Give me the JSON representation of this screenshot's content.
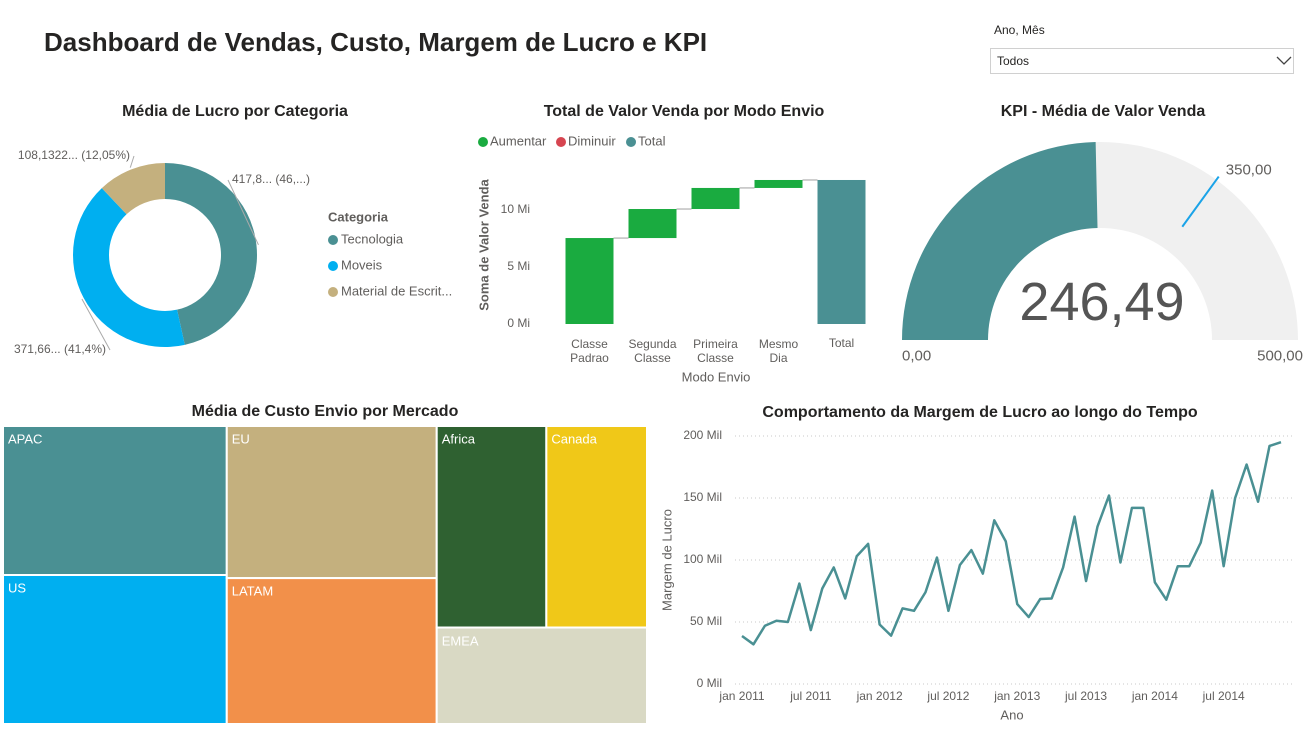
{
  "title": "Dashboard de Vendas, Custo, Margem de Lucro e KPI",
  "slicer": {
    "label": "Ano, Mês",
    "value": "Todos"
  },
  "chart_data": [
    {
      "type": "donut",
      "title": "Média de Lucro por Categoria",
      "legend_title": "Categoria",
      "categories": [
        "Tecnologia",
        "Moveis",
        "Material de Escrit..."
      ],
      "values": [
        417.8,
        371.66,
        108.1322
      ],
      "value_labels": [
        "417,8... (46,...)",
        "371,66... (41,4%)",
        "108,1322... (12,05%)"
      ],
      "colors": [
        "#4a9093",
        "#00aff0",
        "#c4b07e"
      ]
    },
    {
      "type": "waterfall",
      "title": "Total de Valor Venda por Modo Envio",
      "categories": [
        "Classe Padrao",
        "Segunda Classe",
        "Primeira Classe",
        "Mesmo Dia"
      ],
      "values": [
        7.55,
        2.55,
        1.85,
        0.7
      ],
      "total_label": "Total",
      "legend": [
        {
          "name": "Aumentar",
          "color": "#1aab40"
        },
        {
          "name": "Diminuir",
          "color": "#d64550"
        },
        {
          "name": "Total",
          "color": "#4a9093"
        }
      ],
      "ylabel": "Soma de Valor Venda",
      "xlabel": "Modo Envio",
      "ylim": [
        0,
        13
      ],
      "yticks": [
        {
          "value": 0,
          "label": "0 Mi"
        },
        {
          "value": 5,
          "label": "5 Mi"
        },
        {
          "value": 10,
          "label": "10 Mi"
        }
      ]
    },
    {
      "type": "gauge",
      "title": "KPI - Média de Valor Venda",
      "value": 246.49,
      "value_label": "246,49",
      "min": {
        "value": 0,
        "label": "0,00"
      },
      "max": {
        "value": 500,
        "label": "500,00"
      },
      "target": {
        "value": 350,
        "label": "350,00"
      },
      "color": "#4a9093",
      "track_color": "#f0f0f0",
      "target_color": "#1aa3e8"
    },
    {
      "type": "treemap",
      "title": "Média de Custo Envio por Mercado",
      "categories": [
        "APAC",
        "US",
        "EU",
        "LATAM",
        "Africa",
        "Canada",
        "EMEA"
      ],
      "values": [
        33.2,
        33.2,
        31.8,
        30.5,
        22.0,
        20.2,
        20.2
      ],
      "colors": [
        "#4a9093",
        "#00aff0",
        "#c4b07e",
        "#f2904a",
        "#2f6131",
        "#f0c818",
        "#d9d9c4"
      ]
    },
    {
      "type": "line",
      "title": "Comportamento da Margem de Lucro ao longo do Tempo",
      "categories": [
        "jan 2011",
        null,
        null,
        null,
        null,
        null,
        "jul 2011",
        null,
        null,
        null,
        null,
        null,
        "jan 2012",
        null,
        null,
        null,
        null,
        null,
        "jul 2012",
        null,
        null,
        null,
        null,
        null,
        "jan 2013",
        null,
        null,
        null,
        null,
        null,
        "jul 2013",
        null,
        null,
        null,
        null,
        null,
        "jan 2014",
        null,
        null,
        null,
        null,
        null,
        "jul 2014",
        null,
        null,
        null,
        null,
        null
      ],
      "values": [
        38.7,
        32,
        47,
        51,
        50,
        81,
        43.5,
        77,
        94,
        69,
        103,
        113,
        48,
        39,
        61,
        59,
        74,
        102,
        59,
        96,
        108,
        89,
        132,
        115,
        64.5,
        54,
        68.5,
        69,
        94,
        135,
        83,
        127,
        152,
        98,
        142,
        142,
        82,
        68,
        95,
        95,
        114,
        156,
        95,
        150,
        177,
        147,
        192,
        195
      ],
      "color": "#4a9093",
      "ylabel": "Margem de Lucro",
      "xlabel": "Ano",
      "ylim": [
        0,
        200
      ],
      "yticks": [
        {
          "value": 0,
          "label": "0 Mil"
        },
        {
          "value": 50,
          "label": "50 Mil"
        },
        {
          "value": 100,
          "label": "100 Mil"
        },
        {
          "value": 150,
          "label": "150 Mil"
        },
        {
          "value": 200,
          "label": "200 Mil"
        }
      ],
      "grid": true
    }
  ]
}
